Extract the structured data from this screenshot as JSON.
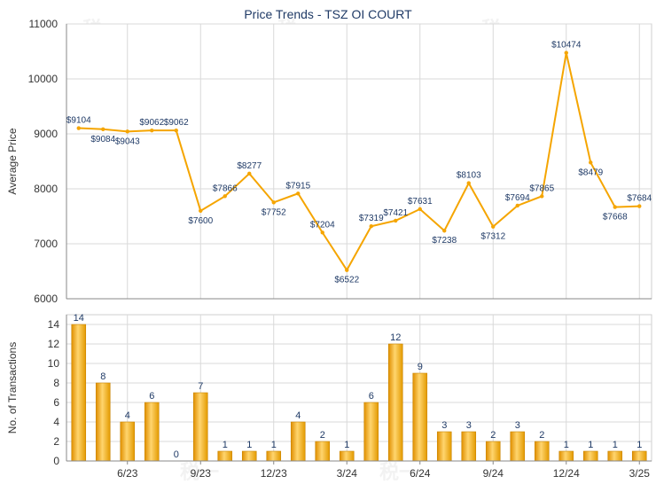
{
  "title": "Price Trends - TSZ OI COURT",
  "watermark": "税一",
  "colors": {
    "line": "#f5a500",
    "bar_dark": "#e39a00",
    "bar_light": "#ffd36b",
    "grid": "#d9d9d9",
    "axis": "#555555",
    "label": "#1f3a66",
    "title": "#1f3a66"
  },
  "chart_data": [
    {
      "type": "line",
      "ylabel": "Average Price",
      "ylim": [
        6000,
        11000
      ],
      "yticks": [
        6000,
        7000,
        8000,
        9000,
        10000,
        11000
      ],
      "xlim": [
        0,
        24
      ],
      "xticks": [
        {
          "pos": 2.5,
          "label": "6/23"
        },
        {
          "pos": 5.5,
          "label": "9/23"
        },
        {
          "pos": 8.5,
          "label": "12/23"
        },
        {
          "pos": 11.5,
          "label": "3/24"
        },
        {
          "pos": 14.5,
          "label": "6/24"
        },
        {
          "pos": 17.5,
          "label": "9/24"
        },
        {
          "pos": 20.5,
          "label": "12/24"
        },
        {
          "pos": 23.5,
          "label": "3/25"
        }
      ],
      "grid": true,
      "points": [
        {
          "x": 0.5,
          "y": 9104,
          "label": "$9104"
        },
        {
          "x": 1.5,
          "y": 9084,
          "label": "$9084"
        },
        {
          "x": 2.5,
          "y": 9043,
          "label": "$9043"
        },
        {
          "x": 3.5,
          "y": 9062,
          "label": "$9062"
        },
        {
          "x": 4.5,
          "y": 9062,
          "label": "$9062"
        },
        {
          "x": 5.5,
          "y": 7600,
          "label": "$7600"
        },
        {
          "x": 6.5,
          "y": 7866,
          "label": "$7866"
        },
        {
          "x": 7.5,
          "y": 8277,
          "label": "$8277"
        },
        {
          "x": 8.5,
          "y": 7752,
          "label": "$7752"
        },
        {
          "x": 9.5,
          "y": 7915,
          "label": "$7915"
        },
        {
          "x": 10.5,
          "y": 7204,
          "label": "$7204"
        },
        {
          "x": 11.5,
          "y": 6522,
          "label": "$6522"
        },
        {
          "x": 12.5,
          "y": 7319,
          "label": "$7319"
        },
        {
          "x": 13.5,
          "y": 7421,
          "label": "$7421"
        },
        {
          "x": 14.5,
          "y": 7631,
          "label": "$7631"
        },
        {
          "x": 15.5,
          "y": 7238,
          "label": "$7238"
        },
        {
          "x": 16.5,
          "y": 8103,
          "label": "$8103"
        },
        {
          "x": 17.5,
          "y": 7312,
          "label": "$7312"
        },
        {
          "x": 18.5,
          "y": 7694,
          "label": "$7694"
        },
        {
          "x": 19.5,
          "y": 7865,
          "label": "$7865"
        },
        {
          "x": 20.5,
          "y": 10474,
          "label": "$10474"
        },
        {
          "x": 21.5,
          "y": 8479,
          "label": "$8479"
        },
        {
          "x": 22.5,
          "y": 7668,
          "label": "$7668"
        },
        {
          "x": 23.5,
          "y": 7684,
          "label": "$7684"
        }
      ]
    },
    {
      "type": "bar",
      "ylabel": "No. of Transactions",
      "ylim": [
        0,
        15
      ],
      "yticks": [
        0,
        2,
        4,
        6,
        8,
        10,
        12,
        14
      ],
      "xticks": [
        "6/23",
        "9/23",
        "12/23",
        "3/24",
        "6/24",
        "9/24",
        "12/24",
        "3/25"
      ],
      "values": [
        14,
        8,
        4,
        6,
        0,
        7,
        1,
        1,
        1,
        4,
        2,
        1,
        6,
        12,
        9,
        3,
        3,
        2,
        3,
        2,
        1,
        1,
        1,
        1
      ]
    }
  ]
}
